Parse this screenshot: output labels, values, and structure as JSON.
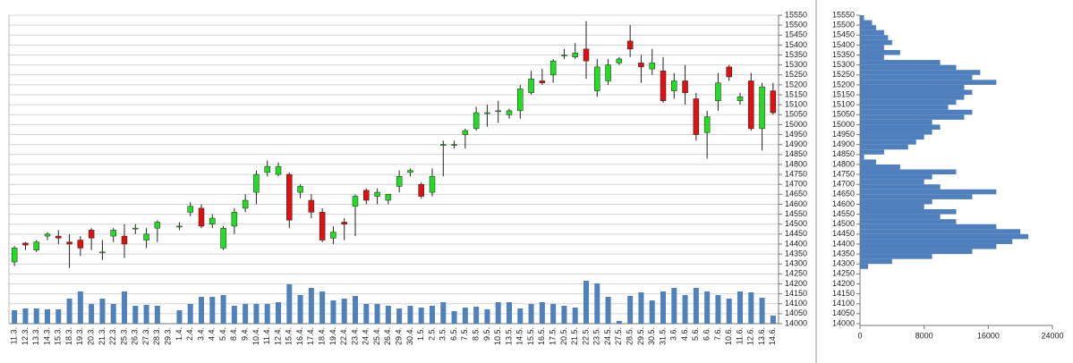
{
  "chart_data": [
    {
      "type": "candlestick",
      "categories": [
        "11.3.",
        "12.3.",
        "13.3.",
        "14.3.",
        "15.3.",
        "18.3.",
        "19.3.",
        "20.3.",
        "21.3.",
        "22.3.",
        "25.3.",
        "26.3.",
        "27.3.",
        "28.3.",
        "29.3.",
        "1.4.",
        "2.4.",
        "3.4.",
        "4.4.",
        "5.4.",
        "8.4.",
        "9.4.",
        "10.4.",
        "11.4.",
        "12.4.",
        "15.4.",
        "16.4.",
        "17.4.",
        "18.4.",
        "19.4.",
        "22.4.",
        "23.4.",
        "24.4.",
        "25.4.",
        "26.4.",
        "29.4.",
        "30.4.",
        "1.5.",
        "2.5.",
        "3.5.",
        "6.5.",
        "7.5.",
        "8.5.",
        "9.5.",
        "10.5.",
        "13.5.",
        "14.5.",
        "15.5.",
        "16.5.",
        "17.5.",
        "20.5.",
        "21.5.",
        "22.5.",
        "23.5.",
        "24.5.",
        "27.5.",
        "28.5.",
        "29.5.",
        "30.5.",
        "31.5.",
        "3.6.",
        "4.6.",
        "5.6.",
        "6.6.",
        "7.6.",
        "10.6.",
        "11.6.",
        "12.6.",
        "13.6.",
        "14.6."
      ],
      "open": [
        14310,
        14405,
        14370,
        14440,
        14440,
        14410,
        14420,
        14470,
        14360,
        14440,
        14440,
        14480,
        14420,
        14480,
        null,
        14490,
        14560,
        14580,
        14500,
        14380,
        14490,
        14580,
        14660,
        14760,
        14750,
        14750,
        14660,
        14620,
        14560,
        14430,
        14510,
        14590,
        14670,
        14640,
        14620,
        14690,
        14760,
        14700,
        14660,
        14900,
        14900,
        14950,
        14980,
        15060,
        15070,
        15050,
        15070,
        15160,
        15220,
        15250,
        15350,
        15340,
        15380,
        15170,
        15220,
        15310,
        15420,
        15310,
        15280,
        15270,
        15170,
        15220,
        15130,
        14960,
        15120,
        15290,
        15120,
        15220,
        14980,
        15170
      ],
      "high": [
        14390,
        14410,
        14420,
        14460,
        14470,
        14450,
        14440,
        14480,
        14420,
        14480,
        14500,
        14500,
        14480,
        14520,
        null,
        14510,
        14610,
        14600,
        14550,
        14490,
        14580,
        14650,
        14770,
        14820,
        14810,
        14760,
        14700,
        14650,
        14580,
        14490,
        14530,
        14650,
        14680,
        14680,
        14650,
        14770,
        14780,
        14710,
        14780,
        14920,
        14920,
        14980,
        15090,
        15100,
        15120,
        15080,
        15200,
        15270,
        15280,
        15330,
        15380,
        15410,
        15520,
        15330,
        15330,
        15340,
        15500,
        15350,
        15380,
        15340,
        15260,
        15300,
        15160,
        15070,
        15260,
        15300,
        15160,
        15260,
        15210,
        15210
      ],
      "low": [
        14290,
        14370,
        14360,
        14420,
        14400,
        14280,
        14340,
        14370,
        14320,
        14410,
        14330,
        14450,
        14380,
        14410,
        null,
        14470,
        14540,
        14480,
        14480,
        14370,
        14450,
        14560,
        14600,
        14740,
        14740,
        14480,
        14630,
        14530,
        14410,
        14400,
        14420,
        14440,
        14600,
        14600,
        14600,
        14660,
        14740,
        14630,
        14640,
        14740,
        14880,
        14880,
        14970,
        14990,
        15010,
        15030,
        15030,
        15150,
        15200,
        15210,
        15330,
        15330,
        15230,
        15140,
        15200,
        15300,
        15340,
        15210,
        15250,
        15110,
        15130,
        15100,
        14920,
        14830,
        15070,
        15220,
        15100,
        14970,
        14870,
        15050
      ],
      "close": [
        14380,
        14395,
        14410,
        14450,
        14430,
        14400,
        14380,
        14430,
        14360,
        14470,
        14400,
        14480,
        14450,
        14510,
        null,
        14490,
        14590,
        14490,
        14530,
        14480,
        14560,
        14620,
        14750,
        14790,
        14790,
        14520,
        14690,
        14560,
        14420,
        14460,
        14500,
        14640,
        14620,
        14660,
        14650,
        14740,
        14770,
        14640,
        14740,
        14900,
        14900,
        14970,
        15060,
        15060,
        15070,
        15070,
        15180,
        15230,
        15210,
        15320,
        15350,
        15360,
        15320,
        15290,
        15300,
        15330,
        15380,
        15290,
        15310,
        15120,
        15220,
        15160,
        14950,
        15040,
        15210,
        15240,
        15140,
        14980,
        15190,
        15060
      ],
      "up_color": "#22dd22",
      "down_color": "#dd1111",
      "volume": {
        "axis": "y2",
        "color": "#4f81bd",
        "values": [
          15,
          17,
          17,
          16,
          16,
          28,
          36,
          22,
          28,
          22,
          36,
          20,
          21,
          20,
          null,
          15,
          22,
          30,
          30,
          32,
          20,
          22,
          22,
          22,
          24,
          44,
          32,
          40,
          36,
          26,
          28,
          31,
          22,
          22,
          20,
          17,
          20,
          18,
          20,
          24,
          14,
          18,
          19,
          16,
          24,
          24,
          17,
          22,
          24,
          22,
          20,
          18,
          48,
          45,
          30,
          3,
          31,
          35,
          26,
          36,
          40,
          32,
          40,
          36,
          32,
          28,
          36,
          35,
          29,
          9
        ]
      },
      "ylim": [
        14000,
        15550
      ],
      "yticks": [
        14000,
        14050,
        14100,
        14150,
        14200,
        14250,
        14300,
        14350,
        14400,
        14450,
        14500,
        14550,
        14600,
        14650,
        14700,
        14750,
        14800,
        14850,
        14900,
        14950,
        15000,
        15050,
        15100,
        15150,
        15200,
        15250,
        15300,
        15350,
        15400,
        15450,
        15500,
        15550
      ],
      "y2lim": [
        0,
        345
      ],
      "grid": true
    },
    {
      "type": "histogram",
      "orientation": "horizontal",
      "color": "#4f7fbd",
      "bins": [
        14275,
        14300,
        14325,
        14350,
        14375,
        14400,
        14425,
        14450,
        14475,
        14500,
        14525,
        14550,
        14575,
        14600,
        14625,
        14650,
        14675,
        14700,
        14725,
        14750,
        14775,
        14800,
        14825,
        14850,
        14875,
        14900,
        14925,
        14950,
        14975,
        15000,
        15025,
        15050,
        15075,
        15100,
        15125,
        15150,
        15175,
        15200,
        15225,
        15250,
        15275,
        15300,
        15325,
        15350,
        15375,
        15400,
        15425,
        15450,
        15475,
        15500,
        15525,
        15550
      ],
      "values": [
        1000,
        4000,
        9000,
        14000,
        17000,
        19000,
        21000,
        20000,
        17000,
        12000,
        10000,
        12000,
        8000,
        9000,
        14000,
        17000,
        10000,
        8000,
        9000,
        12000,
        5000,
        2000,
        500,
        3000,
        6000,
        7000,
        8000,
        9000,
        10000,
        9000,
        13000,
        14000,
        11000,
        12000,
        13000,
        14000,
        13000,
        17000,
        14000,
        15000,
        12000,
        10000,
        3000,
        5000,
        3000,
        4000,
        3500,
        3000,
        2000,
        1500,
        500
      ],
      "xlim": [
        0,
        24000
      ],
      "xticks": [
        0,
        8000,
        16000,
        24000
      ],
      "ylim": [
        14000,
        15550
      ],
      "yticks": [
        14000,
        14050,
        14100,
        14150,
        14200,
        14250,
        14300,
        14350,
        14400,
        14450,
        14500,
        14550,
        14600,
        14650,
        14700,
        14750,
        14800,
        14850,
        14900,
        14950,
        15000,
        15050,
        15100,
        15150,
        15200,
        15250,
        15300,
        15350,
        15400,
        15450,
        15500,
        15550
      ]
    }
  ]
}
